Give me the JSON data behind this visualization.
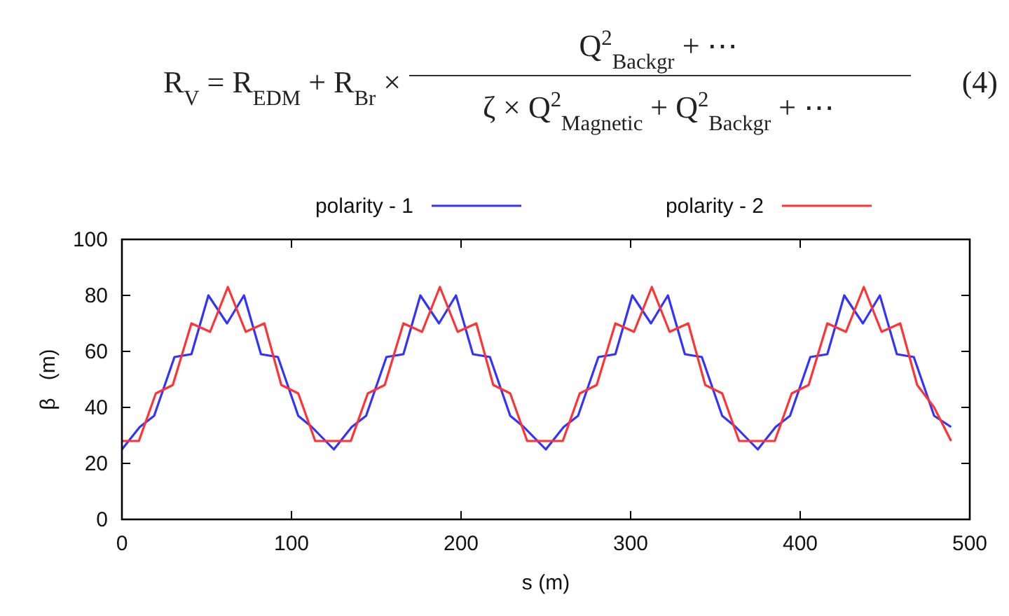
{
  "chart_data": {
    "type": "line",
    "xlabel": "s   (m)",
    "ylabel": "β   (m)",
    "annotations": [
      "R$_{V}$ = R$_{EDM}$ + R$_{Br}$ ×",
      "Q$^{2}$$_{Backgr}$ + ⋯",
      "ζ × Q$^{2}$$_{Magnetic}$ + Q$^{2}$$_{Backgr}$ + ⋯",
      "(4)"
    ],
    "xlim": [
      0,
      500
    ],
    "xticks": [
      0,
      100,
      200,
      300,
      400,
      500
    ],
    "ylim": [
      0,
      100
    ],
    "yticks": [
      0,
      20,
      40,
      60,
      80,
      100
    ],
    "legend": "top",
    "grid": false,
    "marker": "none",
    "line_style": "solid",
    "series": [
      {
        "name": "polarity - 1",
        "color": "#3333ff",
        "x": [
          0,
          10.5,
          19,
          31,
          41,
          51,
          62,
          72,
          82,
          92,
          104,
          112,
          125,
          135.5,
          144,
          156,
          166,
          176,
          187,
          197,
          207,
          217,
          229,
          237,
          250,
          260.5,
          269,
          281,
          291,
          301,
          312,
          322,
          332,
          342,
          354,
          362,
          375,
          385.5,
          394,
          406,
          416,
          426,
          437,
          447,
          457,
          467,
          479,
          489
        ],
        "values": [
          25,
          33,
          37,
          58,
          59,
          80,
          70,
          80,
          59,
          58,
          37,
          33,
          25,
          33,
          37,
          58,
          59,
          80,
          70,
          80,
          59,
          58,
          37,
          33,
          25,
          33,
          37,
          58,
          59,
          80,
          70,
          80,
          59,
          58,
          37,
          33,
          25,
          33,
          37,
          58,
          59,
          80,
          70,
          80,
          59,
          58,
          37,
          33
        ]
      },
      {
        "name": "polarity - 2",
        "color": "#ff3333",
        "x": [
          0,
          10,
          20,
          30,
          41,
          52,
          62.5,
          73,
          84,
          94,
          104,
          114,
          135,
          145,
          155,
          166,
          177,
          187.5,
          198,
          209,
          219,
          229,
          239,
          260,
          270,
          280,
          291,
          302,
          312.5,
          323,
          334,
          344,
          354,
          364,
          385,
          395,
          405,
          416,
          427,
          437.5,
          448,
          459,
          469,
          479,
          489
        ],
        "values": [
          28,
          28,
          45,
          48,
          70,
          67,
          83,
          67,
          70,
          48,
          45,
          28,
          28,
          45,
          48,
          70,
          67,
          83,
          67,
          70,
          48,
          45,
          28,
          28,
          45,
          48,
          70,
          67,
          83,
          67,
          70,
          48,
          45,
          28,
          28,
          45,
          48,
          70,
          67,
          83,
          67,
          70,
          48,
          40,
          28
        ]
      }
    ]
  }
}
